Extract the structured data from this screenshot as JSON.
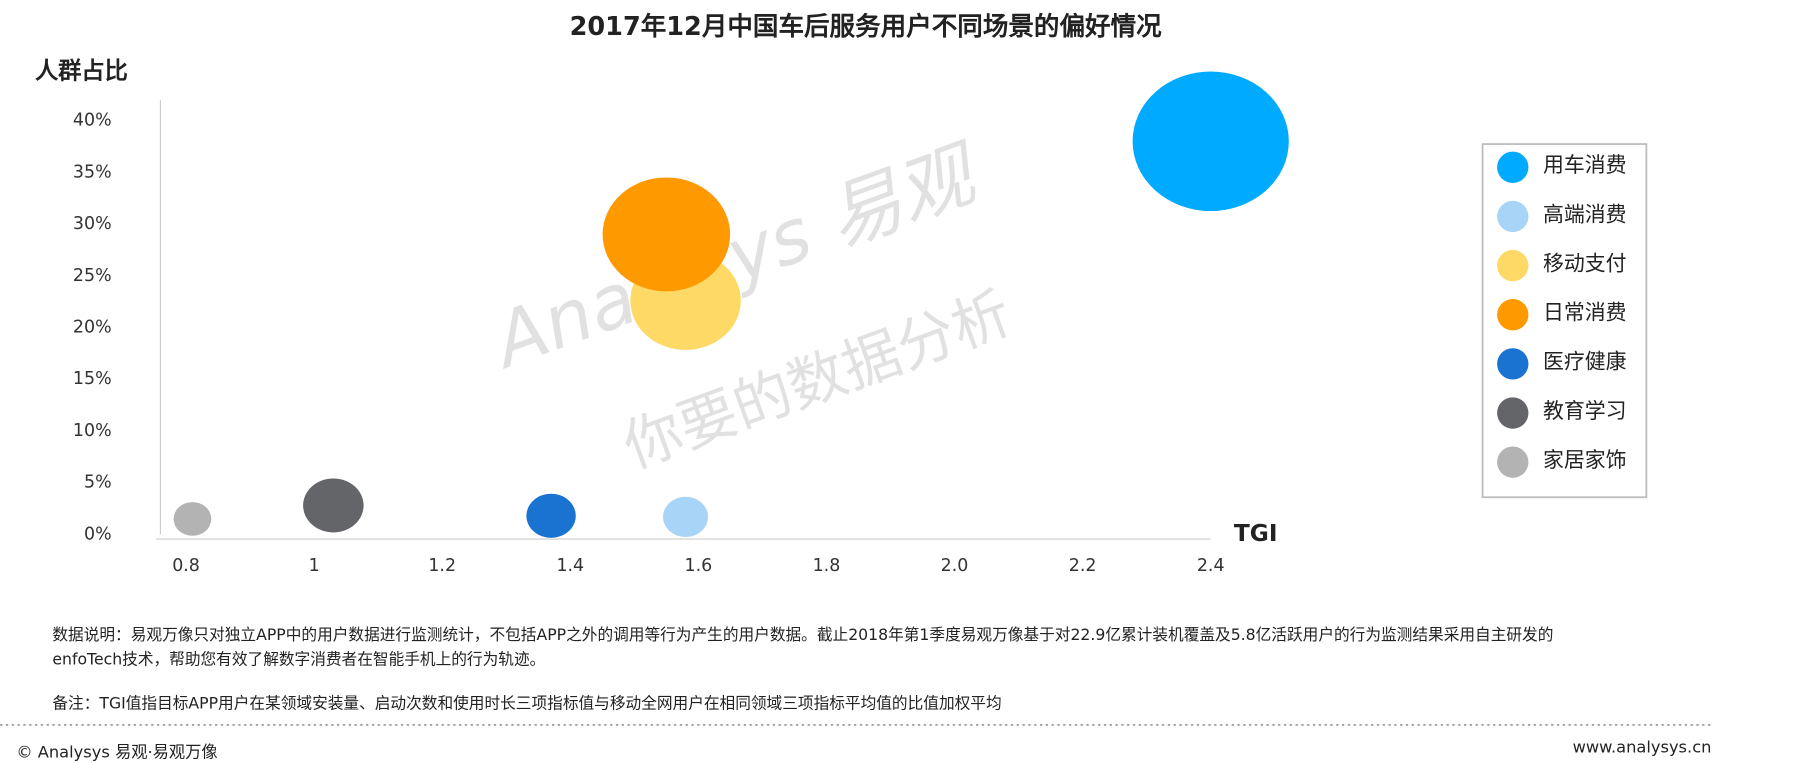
{
  "chart_data": {
    "type": "bubble",
    "title": "2017年12月中国车后服务用户不同场景的偏好情况",
    "y_label": "人群占比",
    "x_label": "TGI",
    "xlim": [
      0.76,
      2.4
    ],
    "xticks": [
      0.8,
      1,
      1.2,
      1.4,
      1.6,
      1.8,
      {
        "value": 2.0,
        "label": "2.0"
      },
      2.2,
      2.4
    ],
    "ylim": [
      0,
      42
    ],
    "yticks": [
      {
        "value": 0,
        "label": "0%"
      },
      {
        "value": 5,
        "label": "5%"
      },
      {
        "value": 10,
        "label": "10%"
      },
      {
        "value": 15,
        "label": "15%"
      },
      {
        "value": 20,
        "label": "20%"
      },
      {
        "value": 25,
        "label": "25%"
      },
      {
        "value": 30,
        "label": "30%"
      },
      {
        "value": 35,
        "label": "35%"
      },
      {
        "value": 40,
        "label": "40%"
      }
    ],
    "legend": "right",
    "series": [
      {
        "name": "用车消费",
        "color": "#00aaff",
        "x": 2.4,
        "y": 38,
        "size": 60
      },
      {
        "name": "高端消费",
        "color": "#a8d4f8",
        "x": 1.58,
        "y": 1.7,
        "size": 5
      },
      {
        "name": "移动支付",
        "color": "#ffd966",
        "x": 1.58,
        "y": 22.6,
        "size": 30
      },
      {
        "name": "日常消费",
        "color": "#ff9900",
        "x": 1.55,
        "y": 29,
        "size": 40
      },
      {
        "name": "医疗健康",
        "color": "#1a73d1",
        "x": 1.37,
        "y": 1.8,
        "size": 6
      },
      {
        "name": "教育学习",
        "color": "#636569",
        "x": 1.03,
        "y": 2.8,
        "size": 9
      },
      {
        "name": "家居家饰",
        "color": "#b3b3b3",
        "x": 0.81,
        "y": 1.5,
        "size": 3.5
      }
    ]
  },
  "watermark": [
    "Analysys 易观",
    "你要的数据分析"
  ],
  "notes": [
    "数据说明：易观万像只对独立APP中的用户数据进行监测统计，不包括APP之外的调用等行为产生的用户数据。截止2018年第1季度易观万像基于对22.9亿累计装机覆盖及5.8亿活跃用户的行为监测结果采用自主研发的",
    "enfoTech技术，帮助您有效了解数字消费者在智能手机上的行为轨迹。",
    "备注：TGI值指目标APP用户在某领域安装量、启动次数和使用时长三项指标值与移动全网用户在相同领域三项指标平均值的比值加权平均"
  ],
  "footer": {
    "copyright": "© Analysys 易观·易观万像",
    "url": "www.analysys.cn"
  }
}
